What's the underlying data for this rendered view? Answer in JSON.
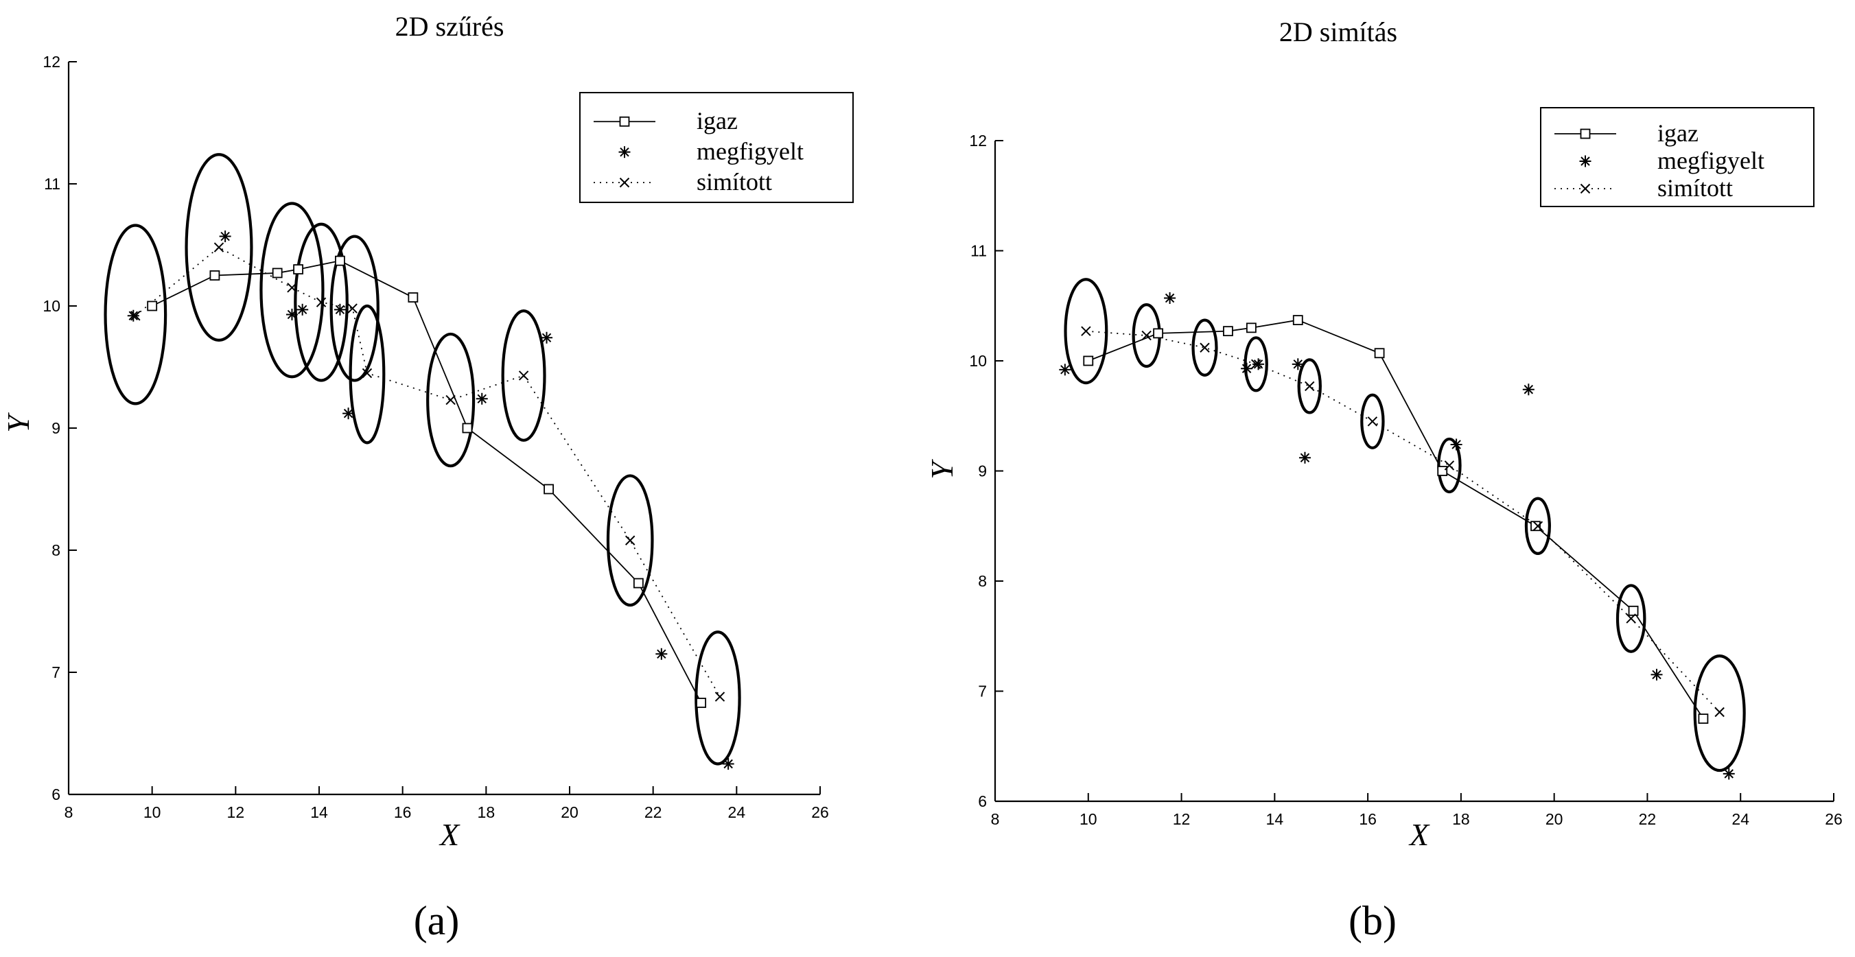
{
  "chart_data": [
    {
      "type": "scatter",
      "title": "2D szűrés",
      "xlabel": "X",
      "ylabel": "Y",
      "panel_label": "(a)",
      "xlim": [
        8,
        26
      ],
      "ylim": [
        6,
        12
      ],
      "xticks": [
        8,
        10,
        12,
        14,
        16,
        18,
        20,
        22,
        24,
        26
      ],
      "yticks": [
        6,
        7,
        8,
        9,
        10,
        11,
        12
      ],
      "x_tick_labels": [
        "8",
        "10",
        "12",
        "14",
        "16",
        "18",
        "20",
        "22",
        "24",
        "26"
      ],
      "y_tick_labels": [
        "6",
        "7",
        "8",
        "9",
        "10",
        "11",
        "12"
      ],
      "grid": false,
      "legend_position": "top-right",
      "legend": [
        {
          "label": "igaz",
          "style": "solid-square"
        },
        {
          "label": "megfigyelt",
          "style": "star"
        },
        {
          "label": "simított",
          "style": "dotted-x"
        }
      ],
      "series": [
        {
          "name": "igaz",
          "points": [
            [
              10.0,
              10.0
            ],
            [
              11.5,
              10.25
            ],
            [
              13.0,
              10.27
            ],
            [
              13.5,
              10.3
            ],
            [
              14.5,
              10.37
            ],
            [
              16.25,
              10.07
            ],
            [
              17.55,
              9.0
            ],
            [
              19.5,
              8.5
            ],
            [
              21.65,
              7.73
            ],
            [
              23.15,
              6.75
            ]
          ]
        },
        {
          "name": "megfigyelt",
          "points": [
            [
              9.55,
              9.92
            ],
            [
              11.75,
              10.57
            ],
            [
              13.35,
              9.93
            ],
            [
              13.6,
              9.97
            ],
            [
              14.5,
              9.97
            ],
            [
              14.7,
              9.12
            ],
            [
              17.9,
              9.24
            ],
            [
              19.45,
              9.74
            ],
            [
              22.2,
              7.15
            ],
            [
              23.8,
              6.25
            ]
          ]
        },
        {
          "name": "simított",
          "points": [
            [
              9.6,
              9.92
            ],
            [
              11.6,
              10.48
            ],
            [
              13.35,
              10.15
            ],
            [
              14.05,
              10.03
            ],
            [
              14.8,
              9.98
            ],
            [
              15.15,
              9.45
            ],
            [
              17.15,
              9.23
            ],
            [
              18.9,
              9.43
            ],
            [
              21.45,
              8.08
            ],
            [
              23.6,
              6.8
            ]
          ]
        }
      ],
      "ellipses": [
        {
          "center": [
            9.6,
            9.93
          ],
          "rx": 0.72,
          "ry": 0.73
        },
        {
          "center": [
            11.6,
            10.48
          ],
          "rx": 0.78,
          "ry": 0.76
        },
        {
          "center": [
            13.35,
            10.13
          ],
          "rx": 0.74,
          "ry": 0.71
        },
        {
          "center": [
            14.05,
            10.03
          ],
          "rx": 0.62,
          "ry": 0.64
        },
        {
          "center": [
            14.85,
            9.98
          ],
          "rx": 0.56,
          "ry": 0.59
        },
        {
          "center": [
            15.15,
            9.44
          ],
          "rx": 0.4,
          "ry": 0.56
        },
        {
          "center": [
            17.15,
            9.23
          ],
          "rx": 0.55,
          "ry": 0.54
        },
        {
          "center": [
            18.9,
            9.43
          ],
          "rx": 0.5,
          "ry": 0.53
        },
        {
          "center": [
            21.45,
            8.08
          ],
          "rx": 0.53,
          "ry": 0.53
        },
        {
          "center": [
            23.55,
            6.79
          ],
          "rx": 0.52,
          "ry": 0.54
        }
      ]
    },
    {
      "type": "scatter",
      "title": "2D simítás",
      "xlabel": "X",
      "ylabel": "Y",
      "panel_label": "(b)",
      "xlim": [
        8,
        26
      ],
      "ylim": [
        6,
        12
      ],
      "xticks": [
        8,
        10,
        12,
        14,
        16,
        18,
        20,
        22,
        24,
        26
      ],
      "yticks": [
        6,
        7,
        8,
        9,
        10,
        11,
        12
      ],
      "x_tick_labels": [
        "8",
        "10",
        "12",
        "14",
        "16",
        "18",
        "20",
        "22",
        "24",
        "26"
      ],
      "y_tick_labels": [
        "6",
        "7",
        "8",
        "9",
        "10",
        "11",
        "12"
      ],
      "grid": false,
      "legend_position": "top-right",
      "legend": [
        {
          "label": "igaz",
          "style": "solid-square"
        },
        {
          "label": "megfigyelt",
          "style": "star"
        },
        {
          "label": "simított",
          "style": "dotted-x"
        }
      ],
      "series": [
        {
          "name": "igaz",
          "points": [
            [
              10.0,
              10.0
            ],
            [
              11.5,
              10.25
            ],
            [
              13.0,
              10.27
            ],
            [
              13.5,
              10.3
            ],
            [
              14.5,
              10.37
            ],
            [
              16.25,
              10.07
            ],
            [
              17.6,
              9.0
            ],
            [
              19.6,
              8.5
            ],
            [
              21.7,
              7.73
            ],
            [
              23.2,
              6.75
            ]
          ]
        },
        {
          "name": "megfigyelt",
          "points": [
            [
              9.5,
              9.92
            ],
            [
              11.75,
              10.57
            ],
            [
              13.4,
              9.93
            ],
            [
              13.65,
              9.97
            ],
            [
              14.5,
              9.97
            ],
            [
              14.65,
              9.12
            ],
            [
              17.9,
              9.24
            ],
            [
              19.45,
              9.74
            ],
            [
              22.2,
              7.15
            ],
            [
              23.75,
              6.25
            ]
          ]
        },
        {
          "name": "simított",
          "points": [
            [
              9.95,
              10.27
            ],
            [
              11.25,
              10.23
            ],
            [
              12.5,
              10.12
            ],
            [
              13.6,
              9.97
            ],
            [
              14.75,
              9.77
            ],
            [
              16.1,
              9.45
            ],
            [
              17.75,
              9.05
            ],
            [
              19.65,
              8.5
            ],
            [
              21.65,
              7.66
            ],
            [
              23.55,
              6.81
            ]
          ]
        }
      ],
      "ellipses": [
        {
          "center": [
            9.95,
            10.27
          ],
          "rx": 0.44,
          "ry": 0.47
        },
        {
          "center": [
            11.25,
            10.23
          ],
          "rx": 0.28,
          "ry": 0.28
        },
        {
          "center": [
            12.5,
            10.12
          ],
          "rx": 0.25,
          "ry": 0.25
        },
        {
          "center": [
            13.6,
            9.97
          ],
          "rx": 0.23,
          "ry": 0.24
        },
        {
          "center": [
            14.75,
            9.77
          ],
          "rx": 0.23,
          "ry": 0.24
        },
        {
          "center": [
            16.1,
            9.45
          ],
          "rx": 0.23,
          "ry": 0.24
        },
        {
          "center": [
            17.75,
            9.05
          ],
          "rx": 0.23,
          "ry": 0.24
        },
        {
          "center": [
            19.65,
            8.5
          ],
          "rx": 0.25,
          "ry": 0.25
        },
        {
          "center": [
            21.65,
            7.66
          ],
          "rx": 0.29,
          "ry": 0.3
        },
        {
          "center": [
            23.55,
            6.8
          ],
          "rx": 0.53,
          "ry": 0.52
        }
      ]
    }
  ]
}
